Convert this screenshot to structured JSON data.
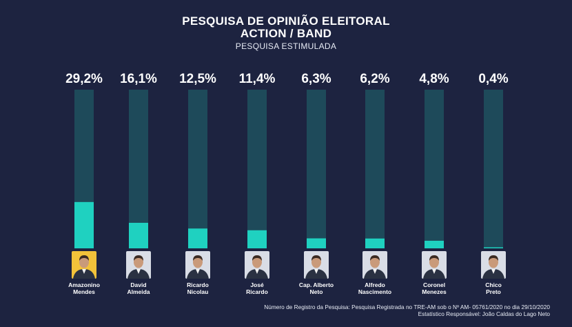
{
  "header": {
    "title_line1": "PESQUISA DE OPINIÃO ELEITORAL",
    "title_line2": "ACTION / BAND",
    "subtitle": "PESQUISA ESTIMULADA"
  },
  "chart_data": {
    "type": "bar",
    "title": "PESQUISA DE OPINIÃO ELEITORAL ACTION / BAND",
    "subtitle": "PESQUISA ESTIMULADA",
    "unit": "%",
    "ylim": [
      0,
      100
    ],
    "grid": false,
    "legend": "none",
    "categories": [
      "Amazonino Mendes",
      "David Almeida",
      "Ricardo Nicolau",
      "José Ricardo",
      "Cap. Alberto Neto",
      "Alfredo Nascimento",
      "Coronel Menezes",
      "Chico Preto"
    ],
    "values": [
      29.2,
      16.1,
      12.5,
      11.4,
      6.3,
      6.2,
      4.8,
      0.4
    ],
    "value_labels": [
      "29,2%",
      "16,1%",
      "12,5%",
      "11,4%",
      "6,3%",
      "6,2%",
      "4,8%",
      "0,4%"
    ],
    "label_lines": [
      [
        "Amazonino",
        "Mendes"
      ],
      [
        "David",
        "Almeida"
      ],
      [
        "Ricardo",
        "Nicolau"
      ],
      [
        "José",
        "Ricardo"
      ],
      [
        "Cap. Alberto",
        "Neto"
      ],
      [
        "Alfredo",
        "Nascimento"
      ],
      [
        "Coronel",
        "Menezes"
      ],
      [
        "Chico",
        "Preto"
      ]
    ],
    "colors": {
      "bar_fill": "#1fd1c0",
      "bar_track": "#1e4a5a",
      "photo_backgrounds": [
        "#f2c23a",
        "#d9dde6",
        "#d9dde6",
        "#d9dde6",
        "#d9dde6",
        "#d9dde6",
        "#d9dde6",
        "#d9dde6"
      ]
    }
  },
  "footer": {
    "line1": "Número de Registro da Pesquisa: Pesquisa Registrada no TRE-AM sob o Nº AM- 05761/2020 no dia 29/10/2020",
    "line2": "Estatístico Responsável: João Caldas do Lago Neto"
  },
  "icons": {
    "candidate_photo": "person-portrait-icon"
  }
}
